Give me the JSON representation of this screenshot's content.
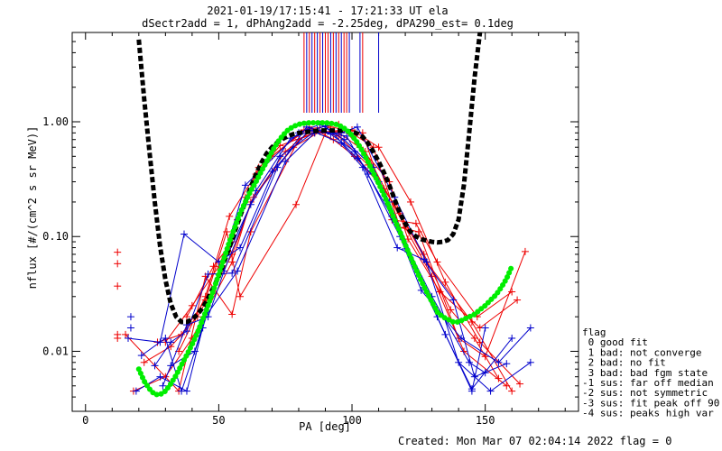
{
  "chart_data": {
    "type": "line",
    "title_line1": "2021-01-19/17:15:41 - 17:21:33 UT ela",
    "title_line2": "dSectr2add = 1, dPhAng2add = -2.25deg, dPA290_est=   0.1deg",
    "xlabel": "PA [deg]",
    "ylabel": "nflux [#/(cm^2 s sr MeV)]",
    "x_range": [
      -5,
      185
    ],
    "y_range": [
      0.003,
      6.0
    ],
    "y_scale": "log",
    "x_ticks": [
      0,
      50,
      100,
      150
    ],
    "x_tick_labels": [
      "0",
      "50",
      "100",
      "150"
    ],
    "y_ticks": [
      0.01,
      0.1,
      1.0
    ],
    "y_tick_labels": [
      "0.01",
      "0.10",
      "1.00"
    ],
    "colors": {
      "red": "#ee0000",
      "blue": "#0000cc",
      "green": "#00ee00",
      "black": "#000000"
    },
    "fit_black": {
      "x": [
        20,
        22,
        24,
        26,
        28,
        30,
        32,
        34,
        36,
        38,
        40,
        42,
        44,
        46,
        48,
        50,
        52,
        54,
        56,
        58,
        60,
        62,
        64,
        66,
        68,
        70,
        72,
        74,
        76,
        78,
        80,
        82,
        84,
        86,
        88,
        90,
        92,
        94,
        96,
        98,
        100,
        102,
        104,
        106,
        108,
        110,
        112,
        114,
        116,
        118,
        120,
        122,
        124,
        126,
        128,
        130,
        132,
        134,
        136,
        138,
        140,
        142,
        144,
        146,
        148
      ],
      "y": [
        5.2,
        1.6,
        0.55,
        0.2,
        0.082,
        0.042,
        0.026,
        0.02,
        0.018,
        0.018,
        0.019,
        0.021,
        0.024,
        0.029,
        0.036,
        0.045,
        0.06,
        0.08,
        0.11,
        0.15,
        0.2,
        0.27,
        0.35,
        0.44,
        0.53,
        0.6,
        0.66,
        0.71,
        0.75,
        0.78,
        0.8,
        0.81,
        0.82,
        0.83,
        0.84,
        0.84,
        0.84,
        0.84,
        0.84,
        0.83,
        0.82,
        0.79,
        0.74,
        0.65,
        0.55,
        0.45,
        0.36,
        0.28,
        0.21,
        0.16,
        0.13,
        0.11,
        0.1,
        0.095,
        0.092,
        0.09,
        0.089,
        0.09,
        0.093,
        0.105,
        0.14,
        0.28,
        0.8,
        2.4,
        6.0
      ]
    },
    "fit_green": {
      "x": [
        20,
        22,
        24,
        26,
        28,
        30,
        32,
        34,
        36,
        38,
        40,
        42,
        44,
        46,
        48,
        50,
        52,
        54,
        56,
        58,
        60,
        62,
        64,
        66,
        68,
        70,
        72,
        74,
        76,
        78,
        80,
        82,
        84,
        86,
        88,
        90,
        92,
        94,
        96,
        98,
        100,
        102,
        104,
        106,
        108,
        110,
        112,
        114,
        116,
        118,
        120,
        122,
        124,
        126,
        128,
        130,
        132,
        134,
        136,
        138,
        140,
        142,
        144,
        146,
        148,
        150,
        152,
        154,
        156,
        158,
        160
      ],
      "y": [
        0.007,
        0.0055,
        0.0047,
        0.0042,
        0.0042,
        0.0045,
        0.0052,
        0.0062,
        0.0076,
        0.0093,
        0.0115,
        0.0145,
        0.019,
        0.025,
        0.034,
        0.047,
        0.065,
        0.09,
        0.12,
        0.16,
        0.2,
        0.25,
        0.3,
        0.37,
        0.45,
        0.55,
        0.66,
        0.76,
        0.85,
        0.91,
        0.95,
        0.97,
        0.98,
        0.98,
        0.98,
        0.98,
        0.97,
        0.95,
        0.91,
        0.85,
        0.76,
        0.66,
        0.55,
        0.45,
        0.36,
        0.29,
        0.23,
        0.18,
        0.14,
        0.11,
        0.085,
        0.066,
        0.052,
        0.041,
        0.033,
        0.027,
        0.022,
        0.02,
        0.019,
        0.018,
        0.018,
        0.019,
        0.02,
        0.021,
        0.023,
        0.025,
        0.028,
        0.031,
        0.036,
        0.043,
        0.055
      ]
    },
    "series": [
      {
        "color": "red",
        "x": [
          18,
          30,
          40,
          55,
          62,
          75,
          85,
          95,
          105,
          120,
          130,
          142,
          158
        ],
        "y": [
          0.0045,
          0.006,
          0.013,
          0.06,
          0.2,
          0.55,
          0.85,
          0.8,
          0.55,
          0.12,
          0.045,
          0.01,
          0.005
        ]
      },
      {
        "color": "red",
        "x": [
          22,
          32,
          42,
          55,
          63,
          78,
          88,
          95,
          106,
          118,
          128,
          145,
          160
        ],
        "y": [
          0.008,
          0.011,
          0.02,
          0.07,
          0.22,
          0.6,
          0.82,
          0.75,
          0.42,
          0.16,
          0.06,
          0.018,
          0.0045
        ]
      },
      {
        "color": "red",
        "x": [
          27,
          36,
          45,
          53,
          58,
          79,
          90,
          100,
          110,
          122,
          135,
          148,
          163
        ],
        "y": [
          0.012,
          0.014,
          0.028,
          0.11,
          0.03,
          0.19,
          0.8,
          0.85,
          0.6,
          0.2,
          0.04,
          0.012,
          0.0052
        ]
      },
      {
        "color": "red",
        "x": [
          15,
          35,
          45,
          55,
          62,
          80,
          92,
          104,
          115,
          124,
          132,
          147,
          160
        ],
        "y": [
          0.014,
          0.0045,
          0.045,
          0.021,
          0.11,
          0.7,
          0.9,
          0.8,
          0.14,
          0.13,
          0.06,
          0.02,
          0.033
        ]
      },
      {
        "color": "red",
        "x": [
          30,
          40,
          50,
          57,
          65,
          82,
          95,
          108,
          118,
          125,
          140,
          150,
          165
        ],
        "y": [
          0.012,
          0.025,
          0.055,
          0.14,
          0.4,
          0.85,
          0.95,
          0.6,
          0.12,
          0.11,
          0.013,
          0.009,
          0.074
        ]
      },
      {
        "color": "red",
        "x": [
          38,
          48,
          55,
          60,
          70,
          84,
          93,
          101,
          112,
          127,
          137,
          146,
          155
        ],
        "y": [
          0.02,
          0.055,
          0.09,
          0.22,
          0.5,
          0.9,
          0.7,
          0.5,
          0.26,
          0.07,
          0.023,
          0.013,
          0.0058
        ]
      },
      {
        "color": "red",
        "x": [
          35,
          45,
          54,
          64,
          73,
          86,
          97,
          103,
          114,
          121,
          133,
          148,
          162
        ],
        "y": [
          0.01,
          0.03,
          0.15,
          0.35,
          0.62,
          0.8,
          0.85,
          0.6,
          0.3,
          0.095,
          0.033,
          0.016,
          0.028
        ]
      },
      {
        "color": "blue",
        "x": [
          19,
          28,
          38,
          45,
          57,
          75,
          86,
          96,
          102,
          116,
          128,
          140,
          152,
          167
        ],
        "y": [
          0.0045,
          0.006,
          0.0045,
          0.02,
          0.05,
          0.45,
          0.8,
          0.8,
          0.9,
          0.22,
          0.06,
          0.008,
          0.0045,
          0.008
        ]
      },
      {
        "color": "blue",
        "x": [
          16,
          28,
          37,
          50,
          58,
          73,
          87,
          98,
          106,
          118,
          126,
          141,
          155,
          167
        ],
        "y": [
          0.013,
          0.012,
          0.105,
          0.06,
          0.08,
          0.5,
          0.85,
          0.75,
          0.35,
          0.1,
          0.034,
          0.013,
          0.008,
          0.016
        ]
      },
      {
        "color": "blue",
        "x": [
          21,
          30,
          36,
          44,
          60,
          80,
          88,
          97,
          108,
          114,
          132,
          145,
          150
        ],
        "y": [
          0.0092,
          0.013,
          0.0045,
          0.016,
          0.28,
          0.8,
          0.95,
          0.7,
          0.4,
          0.2,
          0.02,
          0.0045,
          0.016
        ]
      },
      {
        "color": "blue",
        "x": [
          26,
          32,
          38,
          46,
          55,
          72,
          83,
          92,
          101,
          115,
          130,
          144,
          150
        ],
        "y": [
          0.0075,
          0.012,
          0.015,
          0.047,
          0.048,
          0.4,
          0.9,
          0.78,
          0.55,
          0.15,
          0.03,
          0.008,
          0.0065
        ]
      },
      {
        "color": "blue",
        "x": [
          29,
          38,
          46,
          52,
          64,
          77,
          90,
          102,
          110,
          120,
          135,
          145,
          160
        ],
        "y": [
          0.005,
          0.017,
          0.02,
          0.05,
          0.25,
          0.72,
          0.92,
          0.48,
          0.3,
          0.078,
          0.014,
          0.0047,
          0.013
        ]
      },
      {
        "color": "blue",
        "x": [
          32,
          41,
          50,
          62,
          70,
          84,
          96,
          104,
          117,
          127,
          138,
          146,
          158
        ],
        "y": [
          0.0075,
          0.01,
          0.047,
          0.19,
          0.37,
          0.85,
          0.65,
          0.4,
          0.08,
          0.063,
          0.028,
          0.006,
          0.0078
        ]
      }
    ],
    "extra_markers": [
      {
        "color": "red",
        "x": 12,
        "y": 0.073
      },
      {
        "color": "red",
        "x": 12,
        "y": 0.058
      },
      {
        "color": "red",
        "x": 12,
        "y": 0.037
      },
      {
        "color": "red",
        "x": 12,
        "y": 0.014
      },
      {
        "color": "red",
        "x": 12,
        "y": 0.013
      },
      {
        "color": "blue",
        "x": 17,
        "y": 0.02
      },
      {
        "color": "blue",
        "x": 17,
        "y": 0.016
      }
    ],
    "peak_lines": {
      "red_x": [
        82,
        84,
        86,
        88,
        90,
        91,
        93,
        95,
        97,
        98,
        104
      ],
      "blue_x": [
        83,
        85,
        87,
        89,
        92,
        94,
        96,
        99,
        103,
        110
      ]
    },
    "flag_legend": [
      "flag",
      " 0 good fit",
      " 1 bad: not converge",
      " 2 bad: no fit",
      " 3 bad: bad fgm state",
      "-1 sus: far off median",
      "-2 sus: not symmetric",
      "-3 sus: fit peak off 90",
      "-4 sus: peaks high var"
    ],
    "footer": "Created: Mon Mar 07 02:04:14 2022   flag = 0"
  }
}
